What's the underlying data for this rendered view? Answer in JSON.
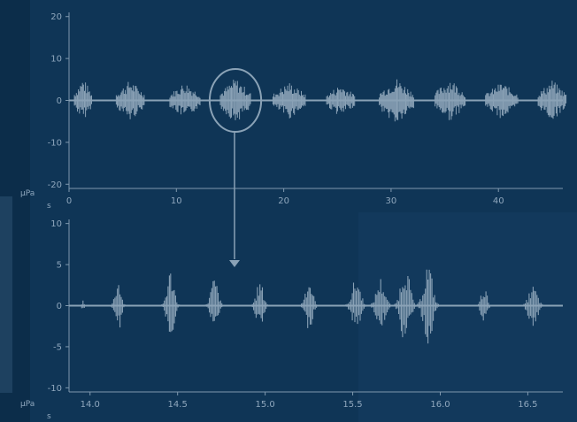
{
  "colors": {
    "background": "#0f3556",
    "panel_dark": "#0c2d4a",
    "axis": "#7f98ae",
    "signal": "#8aa2b6",
    "text": "#8fa7bd"
  },
  "chart_data": [
    {
      "type": "line",
      "title": "",
      "x_unit": "s",
      "y_unit": "µPa",
      "xlim": [
        0,
        46
      ],
      "ylim": [
        -21,
        21
      ],
      "x_ticks": [
        0,
        10,
        20,
        30,
        40
      ],
      "x_tick_labels": [
        "0",
        "10",
        "20",
        "30",
        "40"
      ],
      "y_ticks": [
        20,
        10,
        0,
        -10,
        -20
      ],
      "y_tick_labels": [
        "20",
        "10",
        "0",
        "-10",
        "-20"
      ],
      "grid": false,
      "series": [
        {
          "bursts": [
            {
              "center": 1.3,
              "width": 1.6,
              "peak_pos": 5.5,
              "peak_neg": -5
            },
            {
              "center": 5.7,
              "width": 2.6,
              "peak_pos": 5,
              "peak_neg": -5
            },
            {
              "center": 10.8,
              "width": 2.8,
              "peak_pos": 4.5,
              "peak_neg": -4.5
            },
            {
              "center": 15.5,
              "width": 2.8,
              "peak_pos": 5.5,
              "peak_neg": -5.5
            },
            {
              "center": 20.5,
              "width": 3.0,
              "peak_pos": 4.5,
              "peak_neg": -4.5
            },
            {
              "center": 25.3,
              "width": 2.6,
              "peak_pos": 4,
              "peak_neg": -4
            },
            {
              "center": 30.5,
              "width": 3.2,
              "peak_pos": 5.5,
              "peak_neg": -6
            },
            {
              "center": 35.5,
              "width": 2.8,
              "peak_pos": 5.5,
              "peak_neg": -5
            },
            {
              "center": 40.3,
              "width": 3.0,
              "peak_pos": 4.5,
              "peak_neg": -4.5
            },
            {
              "center": 45.0,
              "width": 2.6,
              "peak_pos": 5,
              "peak_neg": -5
            }
          ]
        }
      ],
      "highlight_ellipse": {
        "center_x": 15.5,
        "center_y": 0,
        "x_radius": 2.4,
        "y_radius": 7.5
      }
    },
    {
      "type": "line",
      "title": "",
      "x_unit": "s",
      "y_unit": "µPa",
      "xlim": [
        13.88,
        16.7
      ],
      "ylim": [
        -10.5,
        10.5
      ],
      "x_ticks": [
        14.0,
        14.5,
        15.0,
        15.5,
        16.0,
        16.5
      ],
      "x_tick_labels": [
        "14.0",
        "14.5",
        "15.0",
        "15.5",
        "16.0",
        "16.5"
      ],
      "y_ticks": [
        10,
        5,
        0,
        -5,
        -10
      ],
      "y_tick_labels": [
        "10",
        "5",
        "0",
        "-5",
        "-10"
      ],
      "grid": false,
      "series": [
        {
          "bursts": [
            {
              "center": 13.96,
              "width": 0.03,
              "peak_pos": 0.8,
              "peak_neg": -0.8
            },
            {
              "center": 14.16,
              "width": 0.08,
              "peak_pos": 3.5,
              "peak_neg": -3.5
            },
            {
              "center": 14.46,
              "width": 0.1,
              "peak_pos": 4.5,
              "peak_neg": -4
            },
            {
              "center": 14.71,
              "width": 0.1,
              "peak_pos": 3.5,
              "peak_neg": -3
            },
            {
              "center": 14.97,
              "width": 0.1,
              "peak_pos": 3,
              "peak_neg": -3
            },
            {
              "center": 15.25,
              "width": 0.1,
              "peak_pos": 3.5,
              "peak_neg": -3
            },
            {
              "center": 15.52,
              "width": 0.12,
              "peak_pos": 3.5,
              "peak_neg": -3
            },
            {
              "center": 15.66,
              "width": 0.12,
              "peak_pos": 3.5,
              "peak_neg": -3
            },
            {
              "center": 15.8,
              "width": 0.12,
              "peak_pos": 5.5,
              "peak_neg": -5
            },
            {
              "center": 15.93,
              "width": 0.12,
              "peak_pos": 5.5,
              "peak_neg": -5
            },
            {
              "center": 16.25,
              "width": 0.08,
              "peak_pos": 2.5,
              "peak_neg": -2.5
            },
            {
              "center": 16.53,
              "width": 0.12,
              "peak_pos": 2.5,
              "peak_neg": -3
            }
          ]
        }
      ]
    }
  ]
}
